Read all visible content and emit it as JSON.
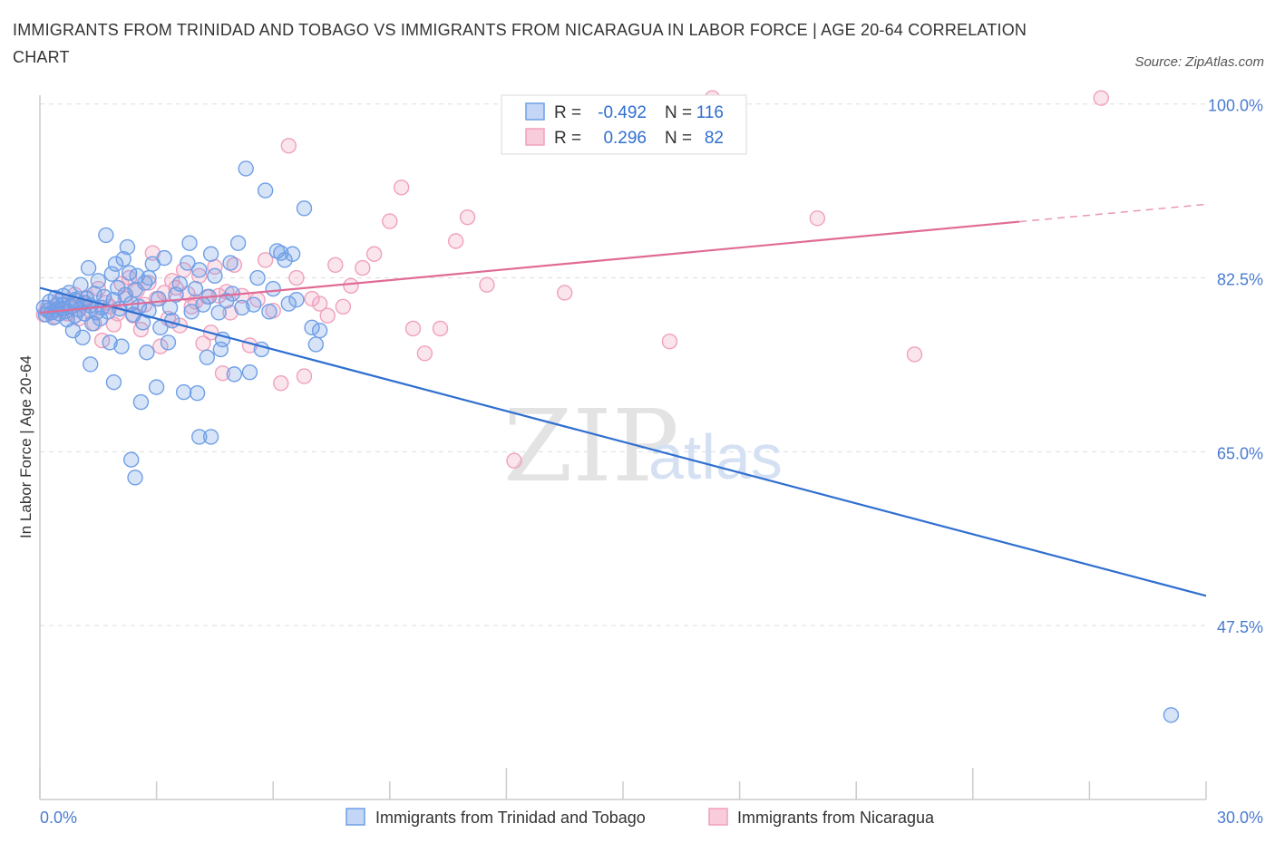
{
  "title": "IMMIGRANTS FROM TRINIDAD AND TOBAGO VS IMMIGRANTS FROM NICARAGUA IN LABOR FORCE | AGE 20-64 CORRELATION CHART",
  "source": "Source: ZipAtlas.com",
  "watermark": {
    "zip": "ZIP",
    "atlas": "atlas"
  },
  "legend": {
    "rows": [
      {
        "r_label": "R =",
        "r_value": "-0.492",
        "n_label": "N =",
        "n_value": "116"
      },
      {
        "r_label": "R =",
        "r_value": "0.296",
        "n_label": "N =",
        "n_value": "82"
      }
    ]
  },
  "bottom_legend": [
    "Immigrants from Trinidad and Tobago",
    "Immigrants from Nicaragua"
  ],
  "chart_data": {
    "type": "scatter",
    "title": "IMMIGRANTS FROM TRINIDAD AND TOBAGO VS IMMIGRANTS FROM NICARAGUA IN LABOR FORCE | AGE 20-64 CORRELATION CHART",
    "ylabel": "In Labor Force | Age 20-64",
    "xlabel": "",
    "xlim": [
      0,
      30
    ],
    "ylim": [
      30,
      107
    ],
    "x_tick_labels": [
      "0.0%",
      "30.0%"
    ],
    "y_ticks": [
      47.5,
      65.0,
      82.5,
      100.0
    ],
    "y_tick_labels": [
      "47.5%",
      "65.0%",
      "82.5%",
      "100.0%"
    ],
    "grid": true,
    "legend_position": "top-center",
    "colors": {
      "trinidad": "#6f9fe6",
      "nicaragua": "#f0a0bd",
      "trinidad_line": "#2f6fd0",
      "nicaragua_line": "#e06b96"
    },
    "series": [
      {
        "name": "Immigrants from Trinidad and Tobago",
        "color": "#6f9fe6",
        "trend": {
          "x0": 0,
          "y0": 81.5,
          "x1": 30,
          "y1": 50.5,
          "dashed_from": null
        },
        "points": [
          [
            0.1,
            79.5
          ],
          [
            0.15,
            78.8
          ],
          [
            0.2,
            79.2
          ],
          [
            0.25,
            80.1
          ],
          [
            0.3,
            79.0
          ],
          [
            0.35,
            78.5
          ],
          [
            0.4,
            80.5
          ],
          [
            0.45,
            79.8
          ],
          [
            0.5,
            78.9
          ],
          [
            0.55,
            79.4
          ],
          [
            0.6,
            80.7
          ],
          [
            0.65,
            79.1
          ],
          [
            0.7,
            78.3
          ],
          [
            0.75,
            81.0
          ],
          [
            0.8,
            79.6
          ],
          [
            0.85,
            77.2
          ],
          [
            0.9,
            78.7
          ],
          [
            0.95,
            80.2
          ],
          [
            1.0,
            79.3
          ],
          [
            1.05,
            81.8
          ],
          [
            1.1,
            76.5
          ],
          [
            1.15,
            78.9
          ],
          [
            1.2,
            80.4
          ],
          [
            1.25,
            83.5
          ],
          [
            1.3,
            79.7
          ],
          [
            1.35,
            77.9
          ],
          [
            1.4,
            80.9
          ],
          [
            1.45,
            79.0
          ],
          [
            1.5,
            82.2
          ],
          [
            1.55,
            78.4
          ],
          [
            1.6,
            79.5
          ],
          [
            1.65,
            80.6
          ],
          [
            1.7,
            86.8
          ],
          [
            1.75,
            79.1
          ],
          [
            1.8,
            76.0
          ],
          [
            1.85,
            82.9
          ],
          [
            1.9,
            80.3
          ],
          [
            1.95,
            83.9
          ],
          [
            2.0,
            81.5
          ],
          [
            2.05,
            79.4
          ],
          [
            2.1,
            75.6
          ],
          [
            2.15,
            84.4
          ],
          [
            2.2,
            80.8
          ],
          [
            2.25,
            85.6
          ],
          [
            2.3,
            83.0
          ],
          [
            2.35,
            79.9
          ],
          [
            2.4,
            78.8
          ],
          [
            2.45,
            81.3
          ],
          [
            2.5,
            82.7
          ],
          [
            2.55,
            79.6
          ],
          [
            2.6,
            70.0
          ],
          [
            2.65,
            78.0
          ],
          [
            2.7,
            82.0
          ],
          [
            2.75,
            75.0
          ],
          [
            2.8,
            79.2
          ],
          [
            2.9,
            83.9
          ],
          [
            3.0,
            71.5
          ],
          [
            3.05,
            80.4
          ],
          [
            3.1,
            77.5
          ],
          [
            3.2,
            84.5
          ],
          [
            3.3,
            76.0
          ],
          [
            3.35,
            79.5
          ],
          [
            3.4,
            78.2
          ],
          [
            3.5,
            80.8
          ],
          [
            3.6,
            81.9
          ],
          [
            3.7,
            71.0
          ],
          [
            3.8,
            84.0
          ],
          [
            3.85,
            86.0
          ],
          [
            3.9,
            79.1
          ],
          [
            4.0,
            81.4
          ],
          [
            4.05,
            70.9
          ],
          [
            4.1,
            83.3
          ],
          [
            4.2,
            79.8
          ],
          [
            4.3,
            74.5
          ],
          [
            4.35,
            80.6
          ],
          [
            4.4,
            84.9
          ],
          [
            4.5,
            82.7
          ],
          [
            4.6,
            79.0
          ],
          [
            4.65,
            75.3
          ],
          [
            4.7,
            76.3
          ],
          [
            4.8,
            80.2
          ],
          [
            4.9,
            84.0
          ],
          [
            4.95,
            80.9
          ],
          [
            5.0,
            72.8
          ],
          [
            5.1,
            86.0
          ],
          [
            5.2,
            79.5
          ],
          [
            5.3,
            93.5
          ],
          [
            5.4,
            73.0
          ],
          [
            5.5,
            79.8
          ],
          [
            5.6,
            82.5
          ],
          [
            5.7,
            75.3
          ],
          [
            5.8,
            91.3
          ],
          [
            5.9,
            79.1
          ],
          [
            6.0,
            81.4
          ],
          [
            6.1,
            85.2
          ],
          [
            6.2,
            85.0
          ],
          [
            6.3,
            84.3
          ],
          [
            6.4,
            79.9
          ],
          [
            6.5,
            84.9
          ],
          [
            6.6,
            80.3
          ],
          [
            6.8,
            89.5
          ],
          [
            7.0,
            77.5
          ],
          [
            7.1,
            75.8
          ],
          [
            7.2,
            77.2
          ],
          [
            2.35,
            64.2
          ],
          [
            2.45,
            62.4
          ],
          [
            4.1,
            66.5
          ],
          [
            4.4,
            66.5
          ],
          [
            1.3,
            73.8
          ],
          [
            1.9,
            72.0
          ],
          [
            2.8,
            82.5
          ],
          [
            0.4,
            79.3
          ],
          [
            0.6,
            79.8
          ],
          [
            0.9,
            80.3
          ],
          [
            1.15,
            80.0
          ],
          [
            29.1,
            38.5
          ]
        ]
      },
      {
        "name": "Immigrants from Nicaragua",
        "color": "#f0a0bd",
        "trend": {
          "x0": 0,
          "y0": 79.0,
          "x1": 30,
          "y1": 89.9,
          "dashed_from": 25.2
        },
        "points": [
          [
            0.1,
            78.8
          ],
          [
            0.2,
            79.5
          ],
          [
            0.3,
            79.0
          ],
          [
            0.4,
            78.6
          ],
          [
            0.5,
            80.2
          ],
          [
            0.6,
            79.3
          ],
          [
            0.7,
            78.9
          ],
          [
            0.8,
            79.7
          ],
          [
            0.9,
            80.8
          ],
          [
            1.0,
            78.4
          ],
          [
            1.1,
            79.9
          ],
          [
            1.2,
            80.5
          ],
          [
            1.3,
            79.2
          ],
          [
            1.4,
            77.9
          ],
          [
            1.5,
            81.4
          ],
          [
            1.6,
            76.2
          ],
          [
            1.7,
            80.0
          ],
          [
            1.8,
            79.6
          ],
          [
            1.9,
            77.8
          ],
          [
            2.0,
            78.9
          ],
          [
            2.1,
            81.9
          ],
          [
            2.2,
            80.4
          ],
          [
            2.3,
            82.5
          ],
          [
            2.4,
            78.7
          ],
          [
            2.5,
            81.2
          ],
          [
            2.6,
            77.3
          ],
          [
            2.7,
            79.8
          ],
          [
            2.8,
            82.0
          ],
          [
            2.9,
            85.0
          ],
          [
            3.0,
            80.4
          ],
          [
            3.1,
            75.6
          ],
          [
            3.2,
            81.0
          ],
          [
            3.3,
            78.4
          ],
          [
            3.4,
            82.2
          ],
          [
            3.5,
            81.5
          ],
          [
            3.6,
            77.7
          ],
          [
            3.7,
            83.3
          ],
          [
            3.8,
            80.9
          ],
          [
            3.9,
            79.6
          ],
          [
            4.0,
            80.1
          ],
          [
            4.1,
            82.7
          ],
          [
            4.2,
            75.9
          ],
          [
            4.3,
            80.6
          ],
          [
            4.4,
            77.0
          ],
          [
            4.5,
            83.6
          ],
          [
            4.6,
            80.7
          ],
          [
            4.7,
            72.9
          ],
          [
            4.8,
            81.1
          ],
          [
            4.9,
            79.0
          ],
          [
            5.0,
            83.8
          ],
          [
            5.2,
            80.7
          ],
          [
            5.4,
            75.7
          ],
          [
            5.6,
            80.3
          ],
          [
            5.8,
            84.3
          ],
          [
            6.0,
            79.2
          ],
          [
            6.2,
            71.9
          ],
          [
            6.4,
            95.8
          ],
          [
            6.6,
            82.5
          ],
          [
            6.8,
            72.6
          ],
          [
            7.0,
            80.4
          ],
          [
            7.2,
            79.9
          ],
          [
            7.4,
            78.7
          ],
          [
            7.6,
            83.8
          ],
          [
            7.8,
            79.6
          ],
          [
            8.0,
            81.7
          ],
          [
            8.3,
            83.5
          ],
          [
            8.6,
            84.9
          ],
          [
            9.0,
            88.2
          ],
          [
            9.3,
            91.6
          ],
          [
            9.6,
            77.4
          ],
          [
            9.9,
            74.9
          ],
          [
            10.3,
            77.4
          ],
          [
            10.7,
            86.2
          ],
          [
            11.0,
            88.6
          ],
          [
            11.5,
            81.8
          ],
          [
            12.2,
            64.1
          ],
          [
            13.5,
            81.0
          ],
          [
            16.2,
            76.1
          ],
          [
            17.3,
            100.6
          ],
          [
            20.0,
            88.5
          ],
          [
            22.5,
            74.8
          ],
          [
            27.3,
            100.6
          ]
        ]
      }
    ]
  }
}
